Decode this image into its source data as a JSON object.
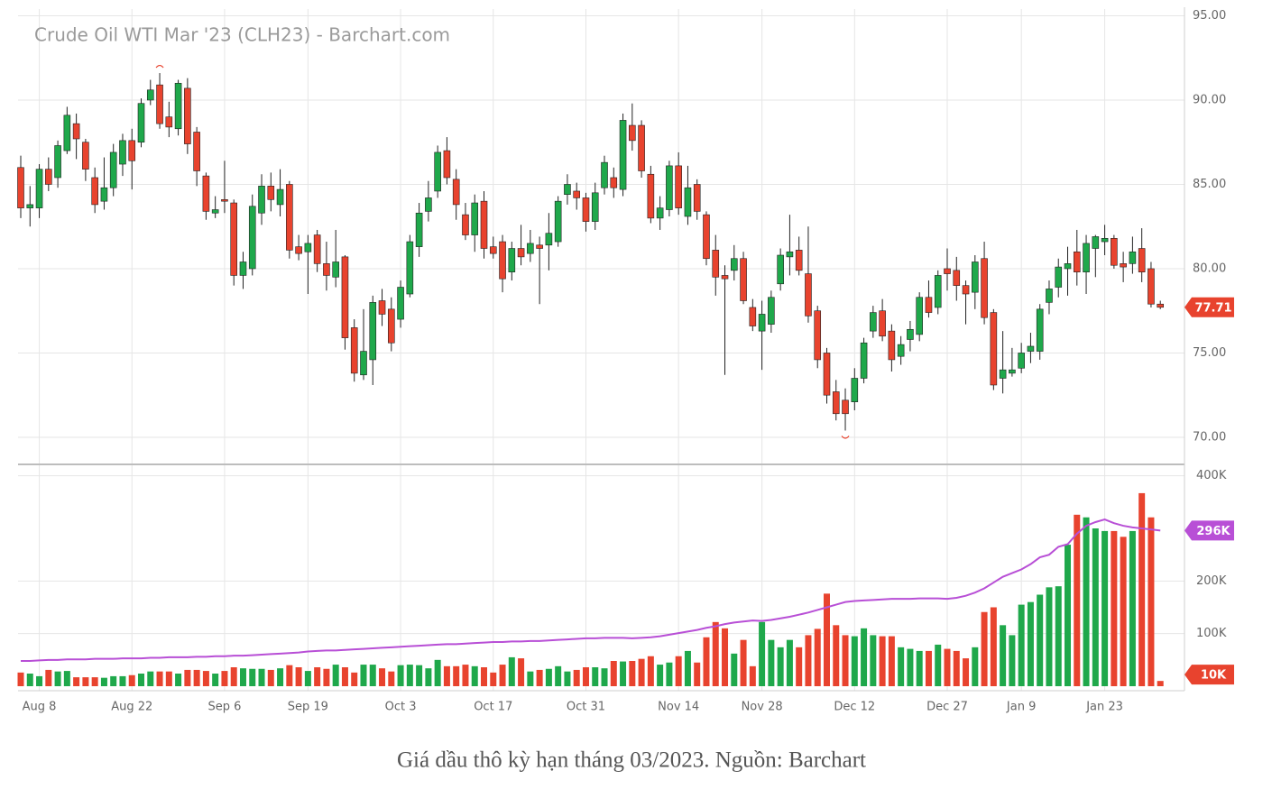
{
  "chart_data": {
    "type": "candlestick",
    "title": "Crude Oil WTI Mar '23 (CLH23) - Barchart.com",
    "up_color": "#1fa84b",
    "down_color": "#e8432e",
    "grid": true,
    "categories": [
      null,
      null,
      "Aug 8",
      null,
      null,
      null,
      null,
      null,
      null,
      null,
      null,
      null,
      "Aug 22",
      null,
      null,
      null,
      null,
      null,
      null,
      null,
      null,
      null,
      "Sep 6",
      null,
      null,
      null,
      null,
      null,
      null,
      null,
      null,
      "Sep 19",
      null,
      null,
      null,
      null,
      null,
      null,
      null,
      null,
      null,
      "Oct 3",
      null,
      null,
      null,
      null,
      null,
      null,
      null,
      null,
      null,
      "Oct 17",
      null,
      null,
      null,
      null,
      null,
      null,
      null,
      null,
      null,
      "Oct 31",
      null,
      null,
      null,
      null,
      null,
      null,
      null,
      null,
      null,
      "Nov 14",
      null,
      null,
      null,
      null,
      null,
      null,
      null,
      null,
      "Nov 28",
      null,
      null,
      null,
      null,
      null,
      null,
      null,
      null,
      null,
      "Dec 12",
      null,
      null,
      null,
      null,
      null,
      null,
      null,
      null,
      null,
      "Dec 27",
      null,
      null,
      null,
      null,
      null,
      null,
      null,
      "Jan 9",
      null,
      null,
      null,
      null,
      null,
      null,
      null,
      null,
      "Jan 23",
      null,
      null,
      null,
      null,
      null,
      null
    ],
    "open": [
      86.0,
      83.6,
      83.6,
      85.9,
      85.4,
      87.0,
      88.6,
      87.5,
      85.4,
      84.0,
      84.8,
      86.2,
      87.6,
      87.5,
      90.0,
      90.9,
      89.0,
      88.3,
      90.7,
      88.1,
      85.5,
      83.3,
      84.1,
      83.9,
      79.6,
      80.0,
      83.3,
      84.9,
      83.8,
      85.0,
      81.3,
      81.0,
      82.0,
      80.3,
      79.5,
      80.7,
      76.5,
      73.7,
      74.6,
      78.1,
      77.6,
      77.0,
      78.5,
      81.3,
      83.4,
      84.6,
      87.0,
      85.3,
      83.2,
      82.0,
      84.0,
      81.3,
      81.6,
      79.8,
      81.2,
      80.9,
      81.4,
      81.4,
      81.6,
      84.4,
      84.6,
      84.2,
      82.8,
      84.8,
      85.4,
      84.7,
      88.5,
      88.5,
      85.6,
      83.0,
      83.5,
      86.1,
      83.1,
      85.0,
      83.2,
      81.1,
      79.6,
      79.9,
      80.6,
      77.7,
      76.3,
      76.7,
      79.1,
      80.7,
      81.1,
      79.7,
      77.5,
      75.0,
      72.7,
      72.2,
      72.1,
      73.5,
      76.3,
      77.5,
      76.3,
      74.8,
      75.8,
      76.1,
      78.3,
      77.7,
      80.0,
      79.9,
      79.0,
      78.6,
      80.6,
      77.4,
      73.5,
      73.8,
      74.1,
      75.1,
      75.1,
      78.0,
      78.9,
      80.0,
      81.0,
      79.8,
      81.2,
      81.6,
      81.8,
      80.3,
      80.3,
      81.2,
      80.0,
      77.9
    ],
    "high": [
      86.7,
      84.9,
      86.2,
      86.6,
      87.6,
      89.6,
      89.2,
      87.7,
      86.0,
      86.6,
      87.4,
      88.0,
      88.3,
      90.1,
      91.2,
      91.6,
      89.9,
      91.2,
      91.3,
      88.4,
      85.7,
      84.3,
      86.4,
      84.1,
      81.0,
      84.4,
      85.6,
      85.7,
      85.9,
      85.2,
      82.0,
      82.0,
      82.3,
      81.6,
      82.3,
      80.8,
      77.0,
      77.6,
      78.4,
      78.8,
      78.3,
      79.3,
      82.0,
      83.9,
      85.2,
      87.3,
      87.8,
      85.9,
      83.9,
      84.4,
      84.6,
      81.9,
      82.0,
      81.6,
      82.6,
      82.3,
      81.9,
      83.3,
      84.3,
      85.6,
      85.1,
      84.5,
      85.1,
      86.7,
      86.0,
      89.2,
      89.8,
      88.8,
      86.1,
      84.3,
      86.4,
      86.9,
      86.1,
      85.3,
      83.4,
      82.0,
      80.2,
      81.4,
      81.0,
      78.2,
      78.1,
      78.7,
      81.2,
      83.2,
      81.9,
      82.5,
      77.8,
      75.3,
      73.4,
      72.9,
      74.1,
      75.9,
      77.8,
      78.2,
      76.7,
      76.0,
      76.9,
      78.6,
      79.3,
      79.9,
      81.2,
      80.7,
      79.3,
      80.8,
      81.6,
      77.6,
      76.3,
      75.3,
      75.6,
      76.2,
      77.9,
      79.3,
      80.6,
      81.3,
      82.3,
      82.0,
      82.0,
      82.6,
      82.0,
      81.0,
      81.9,
      82.4,
      80.4,
      78.1
    ],
    "low": [
      83.0,
      82.5,
      83.0,
      84.6,
      84.8,
      86.8,
      86.5,
      85.2,
      83.3,
      83.5,
      84.3,
      85.5,
      84.7,
      87.2,
      89.7,
      88.3,
      87.8,
      87.9,
      86.8,
      84.9,
      82.9,
      83.0,
      83.3,
      79.0,
      78.8,
      79.6,
      82.6,
      83.4,
      83.1,
      80.6,
      80.5,
      78.5,
      79.8,
      78.7,
      78.9,
      75.2,
      73.3,
      73.4,
      73.1,
      76.6,
      75.1,
      76.5,
      78.3,
      80.7,
      82.8,
      84.2,
      85.0,
      82.9,
      81.7,
      81.0,
      80.6,
      80.6,
      78.6,
      79.3,
      80.2,
      80.4,
      77.9,
      79.9,
      81.3,
      83.8,
      83.5,
      82.2,
      82.3,
      84.4,
      84.2,
      84.3,
      87.0,
      85.4,
      82.7,
      82.3,
      83.1,
      83.2,
      82.6,
      82.9,
      80.2,
      78.4,
      73.7,
      79.3,
      77.9,
      76.3,
      74.0,
      76.2,
      78.7,
      79.6,
      79.6,
      76.8,
      74.1,
      72.0,
      71.0,
      70.4,
      71.6,
      73.2,
      75.9,
      75.7,
      73.9,
      74.3,
      75.1,
      75.7,
      77.1,
      77.3,
      78.7,
      78.1,
      76.7,
      77.6,
      76.7,
      72.8,
      72.6,
      73.6,
      73.8,
      74.4,
      74.6,
      77.3,
      78.3,
      78.4,
      79.0,
      78.5,
      79.5,
      80.8,
      80.0,
      79.2,
      79.7,
      79.2,
      77.7,
      77.6
    ],
    "close": [
      83.6,
      83.8,
      85.9,
      85.0,
      87.3,
      89.1,
      87.7,
      85.9,
      83.8,
      84.8,
      86.9,
      87.6,
      86.4,
      89.8,
      90.6,
      88.6,
      88.4,
      91.0,
      87.4,
      85.8,
      83.4,
      83.5,
      84.0,
      79.6,
      80.4,
      83.7,
      84.9,
      84.1,
      84.7,
      81.1,
      80.9,
      81.5,
      80.3,
      79.6,
      80.4,
      75.9,
      73.8,
      75.1,
      78.0,
      77.3,
      75.6,
      78.9,
      81.6,
      83.3,
      84.2,
      86.9,
      85.4,
      83.8,
      82.0,
      83.9,
      81.2,
      80.9,
      79.4,
      81.2,
      80.7,
      81.5,
      81.2,
      82.1,
      84.0,
      85.0,
      84.2,
      82.8,
      84.5,
      86.3,
      84.8,
      88.8,
      87.6,
      85.8,
      83.0,
      83.6,
      86.1,
      83.6,
      84.8,
      83.4,
      80.6,
      79.5,
      79.4,
      80.6,
      78.1,
      76.6,
      77.3,
      78.3,
      80.8,
      81.0,
      79.9,
      77.2,
      74.6,
      72.5,
      71.4,
      71.4,
      73.5,
      75.6,
      77.4,
      76.0,
      74.6,
      75.5,
      76.4,
      78.3,
      77.4,
      79.6,
      79.7,
      79.0,
      78.5,
      80.4,
      77.1,
      73.1,
      74.0,
      74.0,
      75.0,
      75.4,
      77.6,
      78.8,
      80.1,
      80.3,
      79.8,
      81.5,
      81.9,
      81.8,
      80.2,
      80.1,
      81.0,
      79.8,
      77.9,
      77.71
    ],
    "ylim": [
      68.5,
      95.4
    ],
    "yticks": [
      {
        "value": 70,
        "label": "70.00"
      },
      {
        "value": 75,
        "label": "75.00"
      },
      {
        "value": 80,
        "label": "80.00"
      },
      {
        "value": 85,
        "label": "85.00"
      },
      {
        "value": 90,
        "label": "90.00"
      },
      {
        "value": 95,
        "label": "95.00"
      }
    ],
    "volume": {
      "type": "bar",
      "ylim": [
        0,
        420000
      ],
      "yticks": [
        {
          "value": 100000,
          "label": "100K"
        },
        {
          "value": 200000,
          "label": "200K"
        },
        {
          "value": 400000,
          "label": "400K"
        }
      ],
      "values": [
        26000,
        24000,
        19000,
        31000,
        28000,
        29000,
        17000,
        17000,
        17000,
        16000,
        19000,
        19000,
        21000,
        24000,
        28000,
        28000,
        28000,
        24000,
        31000,
        31000,
        29000,
        24000,
        29000,
        36000,
        34000,
        33000,
        33000,
        31000,
        34000,
        40000,
        36000,
        29000,
        36000,
        33000,
        41000,
        36000,
        26000,
        41000,
        41000,
        34000,
        28000,
        40000,
        41000,
        40000,
        34000,
        50000,
        38000,
        38000,
        41000,
        38000,
        36000,
        26000,
        41000,
        55000,
        53000,
        28000,
        31000,
        33000,
        38000,
        28000,
        31000,
        36000,
        36000,
        34000,
        48000,
        47000,
        48000,
        52000,
        57000,
        41000,
        45000,
        57000,
        67000,
        45000,
        93000,
        122000,
        110000,
        62000,
        88000,
        38000,
        122000,
        88000,
        74000,
        88000,
        74000,
        97000,
        109000,
        176000,
        116000,
        97000,
        95000,
        110000,
        97000,
        95000,
        95000,
        74000,
        71000,
        67000,
        67000,
        79000,
        71000,
        67000,
        53000,
        74000,
        141000,
        150000,
        116000,
        97000,
        155000,
        160000,
        174000,
        188000,
        190000,
        269000,
        326000,
        321000,
        300000,
        295000,
        295000,
        284000,
        295000,
        367000,
        321000,
        10000
      ],
      "last_label": {
        "value": 10000,
        "label": "10K"
      },
      "moving_average": {
        "color": "#b84fd6",
        "values": [
          48000,
          48000,
          49000,
          50000,
          50000,
          51000,
          51000,
          51000,
          52000,
          52000,
          52000,
          53000,
          53000,
          53000,
          54000,
          54000,
          55000,
          55000,
          55000,
          56000,
          56000,
          57000,
          57000,
          58000,
          58000,
          59000,
          60000,
          61000,
          62000,
          63000,
          64000,
          66000,
          67000,
          68000,
          68000,
          69000,
          70000,
          71000,
          72000,
          73000,
          74000,
          75000,
          76000,
          77000,
          78000,
          79000,
          80000,
          80000,
          81000,
          82000,
          83000,
          84000,
          84000,
          85000,
          85000,
          86000,
          86000,
          87000,
          88000,
          89000,
          90000,
          91000,
          91000,
          92000,
          92000,
          92000,
          91000,
          92000,
          93000,
          95000,
          98000,
          101000,
          104000,
          107000,
          111000,
          114000,
          118000,
          121000,
          123000,
          125000,
          124000,
          126000,
          129000,
          132000,
          136000,
          140000,
          145000,
          150000,
          155000,
          160000,
          162000,
          163000,
          164000,
          165000,
          166000,
          166000,
          166000,
          167000,
          167000,
          167000,
          166000,
          168000,
          172000,
          178000,
          186000,
          197000,
          208000,
          215000,
          222000,
          232000,
          245000,
          250000,
          265000,
          270000,
          290000,
          305000,
          312000,
          317000,
          310000,
          305000,
          302000,
          300000,
          298000,
          296000
        ],
        "last_label": {
          "value": 296000,
          "label": "296K"
        }
      }
    }
  },
  "caption": "Giá dầu thô kỳ hạn tháng 03/2023. Nguồn: Barchart"
}
